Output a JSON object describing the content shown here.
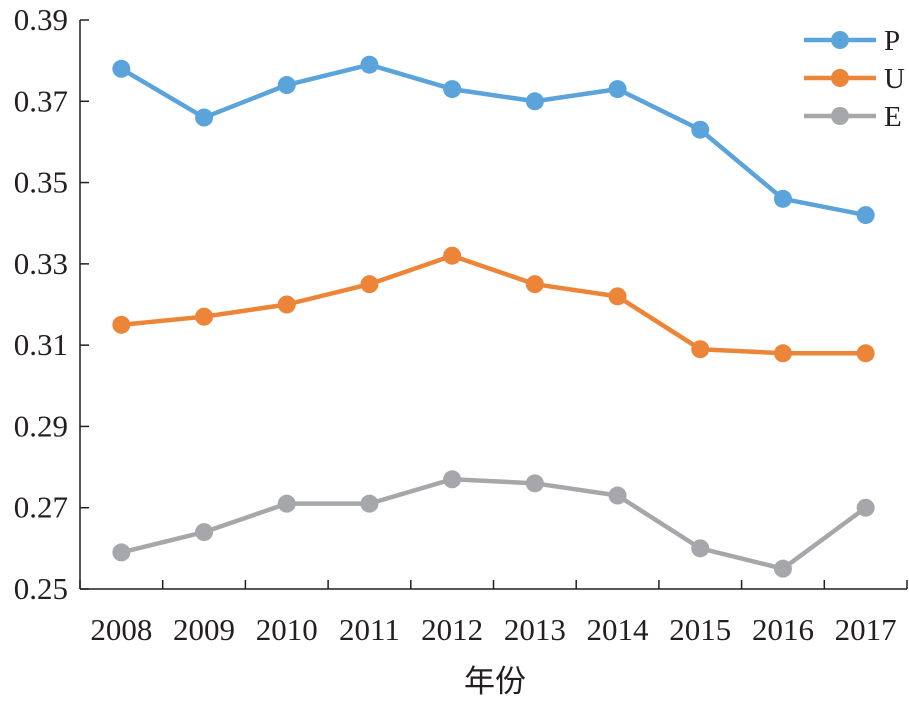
{
  "chart_data": {
    "type": "line",
    "title": "",
    "xlabel": "年份",
    "ylabel": "",
    "categories": [
      "2008",
      "2009",
      "2010",
      "2011",
      "2012",
      "2013",
      "2014",
      "2015",
      "2016",
      "2017"
    ],
    "ylim": [
      0.25,
      0.39
    ],
    "yticks": [
      "0.25",
      "0.27",
      "0.29",
      "0.31",
      "0.33",
      "0.35",
      "0.37",
      "0.39"
    ],
    "grid": false,
    "legend_position": "top-right",
    "series": [
      {
        "name": "P",
        "color": "#5ba3db",
        "values": [
          0.378,
          0.366,
          0.374,
          0.379,
          0.373,
          0.37,
          0.373,
          0.363,
          0.346,
          0.342
        ]
      },
      {
        "name": "U",
        "color": "#ec8537",
        "values": [
          0.315,
          0.317,
          0.32,
          0.325,
          0.332,
          0.325,
          0.322,
          0.309,
          0.308,
          0.308
        ]
      },
      {
        "name": "E",
        "color": "#a6a7ab",
        "values": [
          0.259,
          0.264,
          0.271,
          0.271,
          0.277,
          0.276,
          0.273,
          0.26,
          0.255,
          0.27
        ]
      }
    ]
  }
}
